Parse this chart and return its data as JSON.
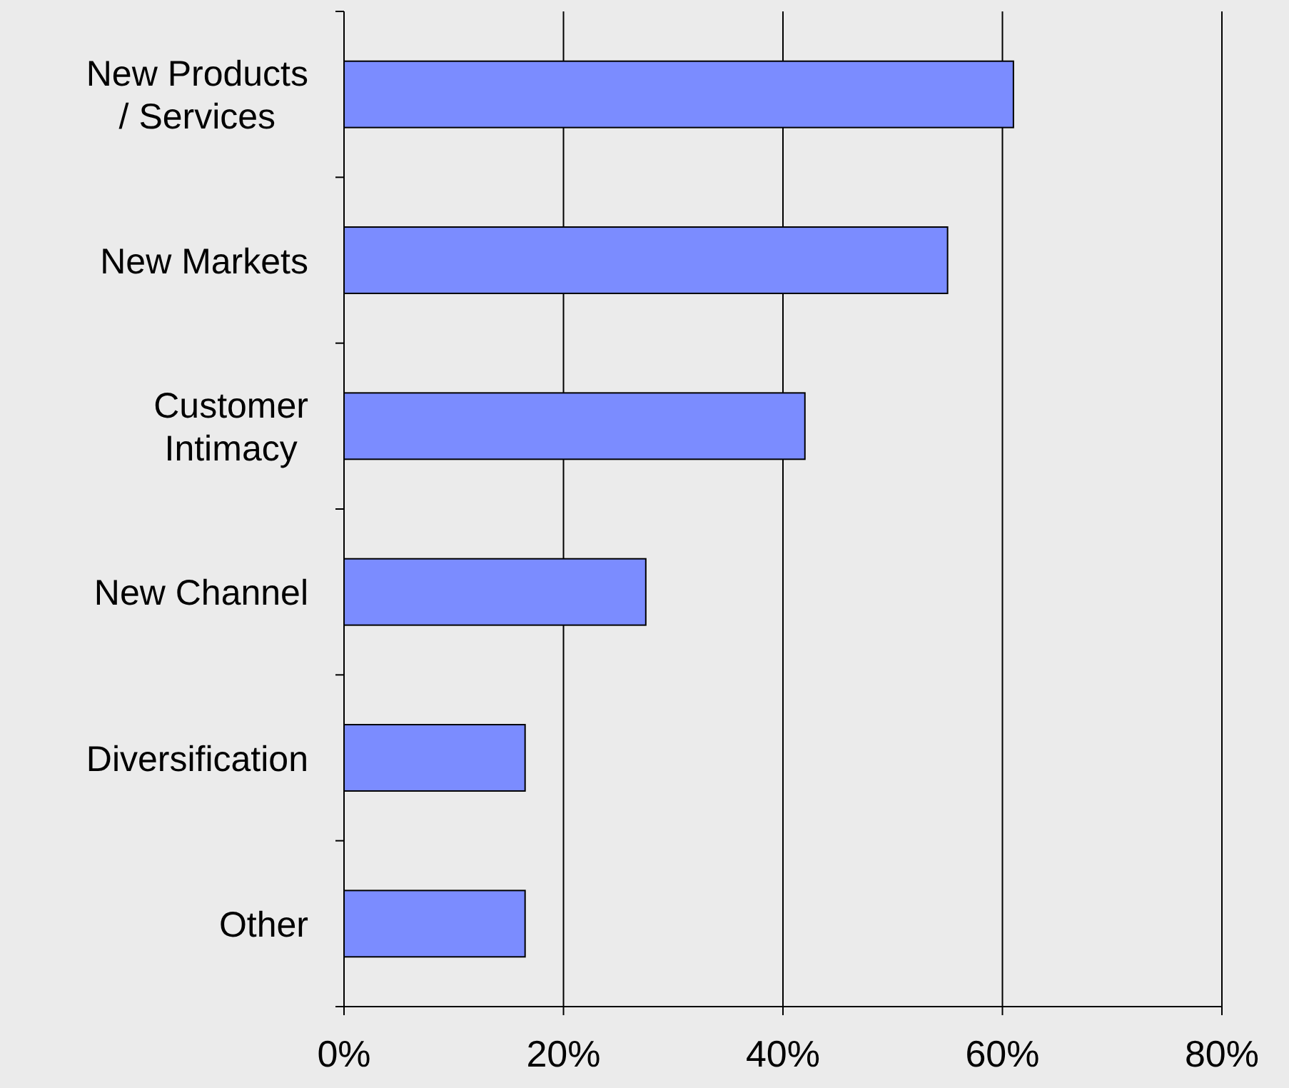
{
  "chart_data": {
    "type": "bar",
    "orientation": "horizontal",
    "categories": [
      "New Products / Services",
      "New Markets",
      "Customer Intimacy",
      "New Channel",
      "Diversification",
      "Other"
    ],
    "values": [
      61,
      55,
      42,
      27.5,
      16.5,
      16.5
    ],
    "color": "#7b8cff",
    "xlim": [
      0,
      80
    ],
    "xticks": [
      {
        "value": 0,
        "label": "0%"
      },
      {
        "value": 20,
        "label": "20%"
      },
      {
        "value": 40,
        "label": "40%"
      },
      {
        "value": 60,
        "label": "60%"
      },
      {
        "value": 80,
        "label": "80%"
      }
    ],
    "grid": "x"
  }
}
